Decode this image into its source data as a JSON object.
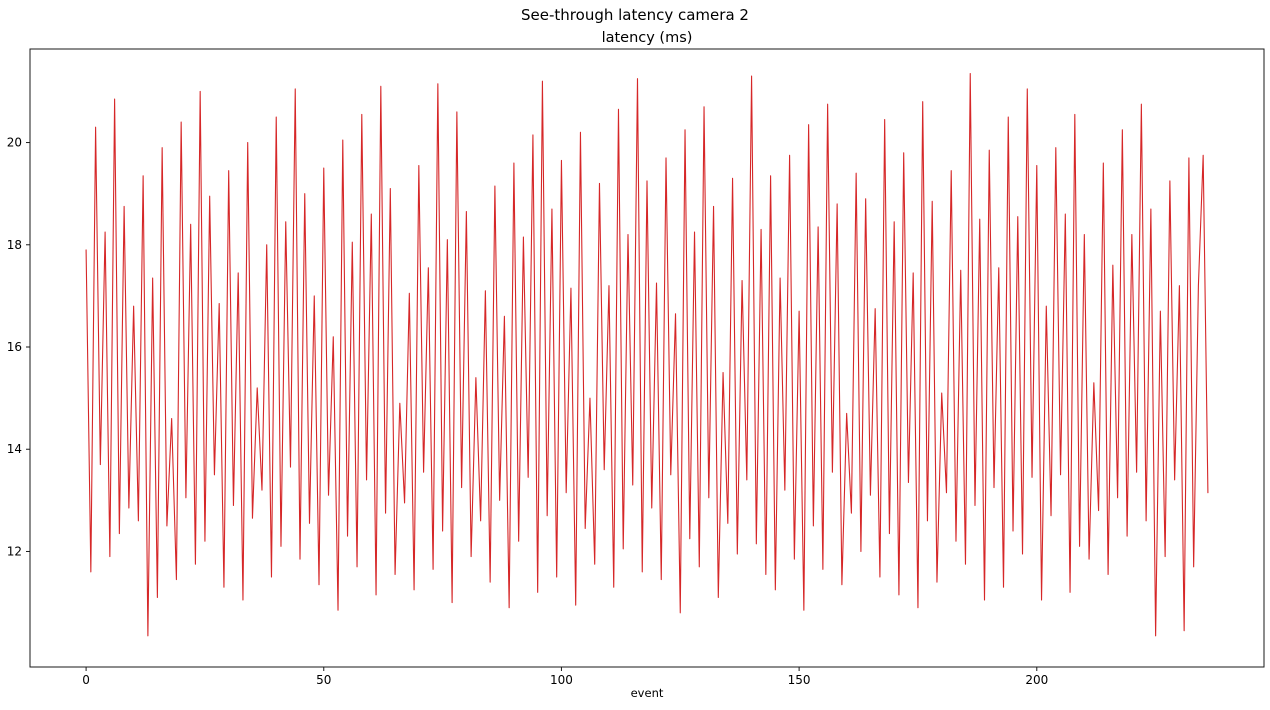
{
  "figure": {
    "background": "#ffffff",
    "text_color": "#000000"
  },
  "chart_data": {
    "type": "line",
    "suptitle": "See-through latency camera 2",
    "title": "latency (ms)",
    "xlabel": "event",
    "ylabel": "",
    "grid": false,
    "legend": "none",
    "axis_color": "#1a1a1a",
    "xticks": [
      0,
      50,
      100,
      150,
      200
    ],
    "yticks": [
      12,
      14,
      16,
      18,
      20
    ],
    "xlim": [
      -11.8,
      247.8
    ],
    "ylim": [
      9.74,
      21.83
    ],
    "x_start": 0,
    "x_step": 1,
    "series": [
      {
        "name": "latency",
        "color": "#d62728",
        "values": [
          17.9,
          11.6,
          20.3,
          13.7,
          18.25,
          11.9,
          20.85,
          12.35,
          18.75,
          12.85,
          16.8,
          12.6,
          19.35,
          10.35,
          17.35,
          11.1,
          19.9,
          12.5,
          14.6,
          11.45,
          20.4,
          13.05,
          18.4,
          11.75,
          21.0,
          12.2,
          18.95,
          13.5,
          16.85,
          11.3,
          19.45,
          12.9,
          17.45,
          11.05,
          20.0,
          12.65,
          15.2,
          13.2,
          18.0,
          11.5,
          20.5,
          12.1,
          18.45,
          13.65,
          21.05,
          11.85,
          19.0,
          12.55,
          17.0,
          11.35,
          19.5,
          13.1,
          16.2,
          10.85,
          20.05,
          12.3,
          18.05,
          11.7,
          20.55,
          13.4,
          18.6,
          11.15,
          21.1,
          12.75,
          19.1,
          11.55,
          14.9,
          12.95,
          17.05,
          11.25,
          19.55,
          13.55,
          17.55,
          11.65,
          21.15,
          12.4,
          18.1,
          11.0,
          20.6,
          13.25,
          18.65,
          11.9,
          15.4,
          12.6,
          17.1,
          11.4,
          19.15,
          13.0,
          16.6,
          10.9,
          19.6,
          12.2,
          18.15,
          13.45,
          20.15,
          11.2,
          21.2,
          12.7,
          18.7,
          11.5,
          19.65,
          13.15,
          17.15,
          10.95,
          20.2,
          12.45,
          15.0,
          11.75,
          19.2,
          13.6,
          17.2,
          11.3,
          20.65,
          12.05,
          18.2,
          13.3,
          21.25,
          11.6,
          19.25,
          12.85,
          17.25,
          11.45,
          19.7,
          13.5,
          16.65,
          10.8,
          20.25,
          12.25,
          18.25,
          11.7,
          20.7,
          13.05,
          18.75,
          11.1,
          15.5,
          12.55,
          19.3,
          11.95,
          17.3,
          13.4,
          21.3,
          12.15,
          18.3,
          11.55,
          19.35,
          11.25,
          17.35,
          13.2,
          19.75,
          11.85,
          16.7,
          10.85,
          20.35,
          12.5,
          18.35,
          11.65,
          20.75,
          13.55,
          18.8,
          11.35,
          14.7,
          12.75,
          19.4,
          12.0,
          18.9,
          13.1,
          16.75,
          11.5,
          20.45,
          12.35,
          18.45,
          11.15,
          19.8,
          13.35,
          17.45,
          10.9,
          20.8,
          12.6,
          18.85,
          11.4,
          15.1,
          13.15,
          19.45,
          12.2,
          17.5,
          11.75,
          21.35,
          12.9,
          18.5,
          11.05,
          19.85,
          13.25,
          17.55,
          11.3,
          20.5,
          12.4,
          18.55,
          11.95,
          21.05,
          13.45,
          19.55,
          11.05,
          16.8,
          12.7,
          19.9,
          13.5,
          18.6,
          11.2,
          20.55,
          12.1,
          18.2,
          11.85,
          15.3,
          12.8,
          19.6,
          11.55,
          17.6,
          13.05,
          20.25,
          12.3,
          18.2,
          13.55,
          20.75,
          12.6,
          18.7,
          10.35,
          16.7,
          11.9,
          19.25,
          13.4,
          17.2,
          10.45,
          19.7,
          11.7,
          17.2,
          19.75,
          13.15
        ]
      }
    ]
  }
}
